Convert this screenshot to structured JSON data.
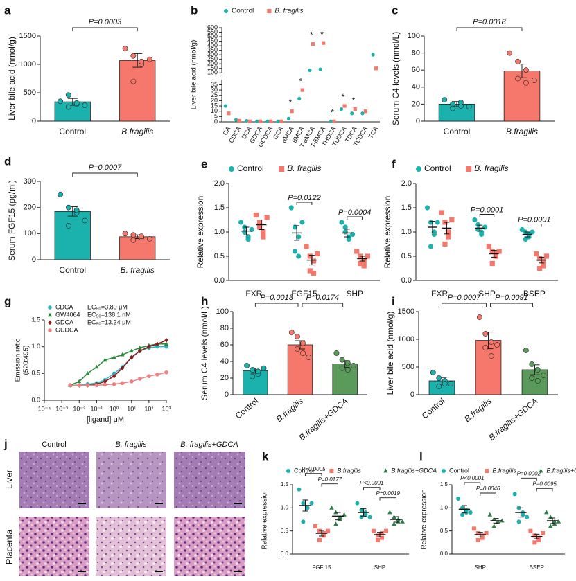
{
  "chart_data": [
    {
      "type": "bar",
      "label": "a",
      "ylabel": "Liver bile acid (nmol/g)",
      "categories": [
        "Control",
        "B.fragilis"
      ],
      "colors": [
        "#1bb1ad",
        "#f6776b"
      ],
      "values": [
        340,
        1070
      ],
      "errors": [
        60,
        120
      ],
      "points": [
        [
          350,
          250,
          300,
          460,
          320,
          280
        ],
        [
          1280,
          1150,
          1000,
          700,
          1050,
          1090
        ]
      ],
      "ylim": [
        0,
        1500
      ],
      "yticks": [
        0,
        500,
        1000,
        1500
      ],
      "comparisons": [
        {
          "groups": [
            0,
            1
          ],
          "label": "P=0.0003"
        }
      ]
    },
    {
      "type": "dot",
      "label": "b",
      "ylabel": "Liver bile acid (nmol/g)",
      "categories": [
        "CA",
        "CDCA",
        "DCA",
        "GDCA",
        "GCDCA",
        "GCA",
        "αMCA",
        "βMCA",
        "T-αMCA",
        "T-βMCA",
        "THDCA",
        "TUDCA",
        "TDCA",
        "TCDCA",
        "TCA"
      ],
      "series": [
        {
          "name": "Control",
          "color": "#1bb1ad",
          "marker": "circle",
          "values": [
            15,
            2,
            1,
            0.5,
            0.5,
            0.5,
            3,
            22,
            130,
            140,
            0.5,
            12,
            8,
            8,
            300
          ]
        },
        {
          "name": "B. fragilis",
          "color": "#f6776b",
          "marker": "square",
          "values": [
            8,
            1,
            0.5,
            0.5,
            0.5,
            0.5,
            10,
            30,
            420,
            430,
            0.5,
            15,
            12,
            10,
            150
          ]
        }
      ],
      "ylim": [
        0,
        600
      ],
      "ybreak": [
        40,
        100
      ],
      "yticks": [
        0,
        5,
        10,
        15,
        20,
        25,
        30,
        35,
        100,
        150,
        200,
        250,
        300,
        350,
        400,
        450,
        500,
        550,
        600
      ],
      "significance": [
        null,
        null,
        null,
        null,
        null,
        null,
        "*",
        "*",
        "*",
        "*",
        "*",
        "*",
        "*",
        null,
        null
      ]
    },
    {
      "type": "bar",
      "label": "c",
      "ylabel": "Serum C4 levels (nmol/L)",
      "categories": [
        "Control",
        "B.fragilis"
      ],
      "colors": [
        "#1bb1ad",
        "#f6776b"
      ],
      "values": [
        20,
        59
      ],
      "errors": [
        3,
        8
      ],
      "points": [
        [
          25,
          20,
          18,
          15,
          22,
          17
        ],
        [
          80,
          70,
          60,
          50,
          45,
          48
        ]
      ],
      "ylim": [
        0,
        100
      ],
      "yticks": [
        0,
        20,
        40,
        60,
        80,
        100
      ],
      "comparisons": [
        {
          "groups": [
            0,
            1
          ],
          "label": "P=0.0018"
        }
      ]
    },
    {
      "type": "bar",
      "label": "d",
      "ylabel": "Serum FGF15 (pg/ml)",
      "categories": [
        "Control",
        "B. fragilis"
      ],
      "colors": [
        "#1bb1ad",
        "#f6776b"
      ],
      "values": [
        185,
        88
      ],
      "errors": [
        18,
        7
      ],
      "points": [
        [
          250,
          200,
          180,
          130,
          190,
          150
        ],
        [
          100,
          95,
          85,
          75,
          90,
          80
        ]
      ],
      "ylim": [
        0,
        300
      ],
      "yticks": [
        0,
        100,
        200,
        300
      ],
      "comparisons": [
        {
          "groups": [
            0,
            1
          ],
          "label": "P=0.0007"
        }
      ]
    },
    {
      "type": "dot",
      "label": "e",
      "ylabel": "Relative expression",
      "categories": [
        "FXR",
        "FGF15",
        "SHP"
      ],
      "series": [
        {
          "name": "Control",
          "color": "#1bb1ad",
          "marker": "circle",
          "values": [
            1.02,
            0.98,
            0.98
          ],
          "errors": [
            0.08,
            0.15,
            0.08
          ],
          "points": [
            [
              1.2,
              1.0,
              0.9,
              1.1,
              0.85,
              1.05
            ],
            [
              1.5,
              1.1,
              0.9,
              0.6,
              0.5,
              1.2
            ],
            [
              1.2,
              1.0,
              0.85,
              1.1,
              0.9,
              0.95
            ]
          ]
        },
        {
          "name": "B. fragilis",
          "color": "#f6776b",
          "marker": "square",
          "values": [
            1.15,
            0.42,
            0.45
          ],
          "errors": [
            0.1,
            0.1,
            0.05
          ],
          "points": [
            [
              1.35,
              1.2,
              0.9,
              1.1,
              1.0,
              1.3
            ],
            [
              0.7,
              0.5,
              0.4,
              0.2,
              0.15,
              0.55
            ],
            [
              0.6,
              0.5,
              0.4,
              0.35,
              0.3,
              0.5
            ]
          ]
        }
      ],
      "ylim": [
        0,
        2
      ],
      "yticks": [
        {
          "value": 0,
          "label": "0.0"
        },
        0.5,
        {
          "value": 1,
          "label": "1.0"
        },
        1.5,
        {
          "value": 2,
          "label": "2.0"
        }
      ],
      "comparisons": [
        {
          "category": 1,
          "groups": [
            0,
            1
          ],
          "label": "P=0.0122"
        },
        {
          "category": 2,
          "groups": [
            0,
            1
          ],
          "label": "P=0.0004"
        }
      ]
    },
    {
      "type": "dot",
      "label": "f",
      "ylabel": "Relative expression",
      "categories": [
        "FXR",
        "SHP",
        "BSEP"
      ],
      "series": [
        {
          "name": "Control",
          "color": "#1bb1ad",
          "marker": "circle",
          "values": [
            1.1,
            1.08,
            0.95
          ],
          "errors": [
            0.12,
            0.06,
            0.05
          ],
          "points": [
            [
              1.5,
              1.2,
              1.0,
              0.7,
              0.95,
              1.2
            ],
            [
              1.25,
              1.15,
              1.0,
              1.05,
              0.95,
              1.1
            ],
            [
              1.05,
              1.0,
              0.9,
              0.85,
              0.95,
              1.0
            ]
          ]
        },
        {
          "name": "B. fragilis",
          "color": "#f6776b",
          "marker": "square",
          "values": [
            1.08,
            0.55,
            0.42
          ],
          "errors": [
            0.12,
            0.07,
            0.06
          ],
          "points": [
            [
              1.4,
              1.2,
              1.0,
              0.75,
              0.9,
              1.25
            ],
            [
              0.7,
              0.6,
              0.5,
              0.35,
              0.55,
              0.6
            ],
            [
              0.55,
              0.45,
              0.4,
              0.25,
              0.3,
              0.5
            ]
          ]
        }
      ],
      "ylim": [
        0,
        2
      ],
      "yticks": [
        {
          "value": 0,
          "label": "0.0"
        },
        0.5,
        {
          "value": 1,
          "label": "1.0"
        },
        1.5,
        {
          "value": 2,
          "label": "2.0"
        }
      ],
      "comparisons": [
        {
          "category": 1,
          "groups": [
            0,
            1
          ],
          "label": "P=0.0001"
        },
        {
          "category": 2,
          "groups": [
            0,
            1
          ],
          "label": "P=0.0001"
        }
      ]
    },
    {
      "type": "line",
      "label": "g",
      "ylabel": [
        "Emission  ratio",
        "(520:495)"
      ],
      "xlabel": "[ligand] μM",
      "x": [
        0.003,
        0.01,
        0.03,
        0.1,
        0.3,
        1,
        3,
        10,
        30,
        100,
        300,
        1000
      ],
      "series": [
        {
          "name": "CDCA",
          "ec50": "EC₅₀=3.80 μM",
          "color": "#2bb5c0",
          "marker": "circle",
          "values": [
            0.28,
            0.28,
            0.3,
            0.32,
            0.38,
            0.5,
            0.62,
            0.8,
            0.92,
            0.98,
            1.0,
            1.0
          ]
        },
        {
          "name": "GW4064",
          "ec50": "EC₅₀=138.1 nM",
          "color": "#2a8a3a",
          "marker": "triangle",
          "values": [
            0.28,
            0.35,
            0.5,
            0.62,
            0.75,
            0.8,
            0.85,
            0.92,
            0.98,
            1.02,
            1.05,
            1.05
          ]
        },
        {
          "name": "GDCA",
          "ec50": "EC₅₀=13.34 μM",
          "color": "#8b1a1a",
          "marker": "diamond",
          "values": [
            0.28,
            0.28,
            0.28,
            0.3,
            0.35,
            0.45,
            0.6,
            0.8,
            0.92,
            1.0,
            1.05,
            1.12
          ]
        },
        {
          "name": "GUDCA",
          "color": "#f08080",
          "marker": "circle",
          "values": [
            0.28,
            0.28,
            0.28,
            0.28,
            0.29,
            0.3,
            0.32,
            0.35,
            0.4,
            0.45,
            0.48,
            0.52
          ]
        }
      ],
      "xlog": true,
      "xlim": [
        0.0001,
        1000
      ],
      "xticks": [
        {
          "value": 0.0001,
          "label": "10⁻⁴"
        },
        {
          "value": 0.001,
          "label": "10⁻³"
        },
        {
          "value": 0.01,
          "label": "10⁻²"
        },
        {
          "value": 0.1,
          "label": "10⁻¹"
        },
        {
          "value": 1,
          "label": "10⁰"
        },
        {
          "value": 10,
          "label": "10¹"
        },
        {
          "value": 100,
          "label": "10²"
        },
        {
          "value": 1000,
          "label": "10³"
        }
      ],
      "ylim": [
        0,
        1.5
      ],
      "yticks": [
        {
          "value": 0,
          "label": "0.0"
        },
        0.5,
        {
          "value": 1,
          "label": "1.0"
        },
        1.5
      ]
    },
    {
      "type": "bar",
      "label": "h",
      "ylabel": "Serum C4 levels (nmol/L)",
      "categories": [
        "Control",
        "B.fragilis",
        "B.fragilis+GDCA"
      ],
      "colors": [
        "#1bb1ad",
        "#f6776b",
        "#5a9a5a"
      ],
      "values": [
        29,
        60,
        37
      ],
      "errors": [
        3,
        5,
        4
      ],
      "points": [
        [
          35,
          30,
          25,
          22,
          28,
          32
        ],
        [
          75,
          70,
          62,
          55,
          50,
          45
        ],
        [
          50,
          42,
          38,
          32,
          30,
          35
        ]
      ],
      "ylim": [
        0,
        100
      ],
      "yticks": [
        0,
        20,
        40,
        60,
        80,
        100
      ],
      "comparisons": [
        {
          "groups": [
            0,
            1
          ],
          "label": "P=0.0013"
        },
        {
          "groups": [
            1,
            2
          ],
          "label": "P=0.0174"
        }
      ]
    },
    {
      "type": "bar",
      "label": "i",
      "ylabel": "Liver bile acid (nmol/g)",
      "categories": [
        "Control",
        "B.fragilis",
        "B.fragilis+GDCA"
      ],
      "colors": [
        "#1bb1ad",
        "#f6776b",
        "#5a9a5a"
      ],
      "values": [
        250,
        980,
        450
      ],
      "errors": [
        60,
        150,
        90
      ],
      "points": [
        [
          400,
          300,
          250,
          150,
          200,
          200
        ],
        [
          1400,
          1100,
          950,
          850,
          700,
          900
        ],
        [
          800,
          550,
          450,
          300,
          250,
          350
        ]
      ],
      "ylim": [
        0,
        1500
      ],
      "yticks": [
        0,
        500,
        1000,
        1500
      ],
      "comparisons": [
        {
          "groups": [
            0,
            1
          ],
          "label": "P=0.0007"
        },
        {
          "groups": [
            1,
            2
          ],
          "label": "P=0.0091"
        }
      ]
    },
    {
      "type": "dot",
      "label": "k",
      "ylabel": "Relative expression",
      "categories": [
        "FGF 15",
        "SHP"
      ],
      "series": [
        {
          "name": "Control",
          "color": "#1bb1ad",
          "marker": "circle",
          "values": [
            1.05,
            0.9
          ],
          "errors": [
            0.12,
            0.08
          ],
          "points": [
            [
              1.4,
              1.1,
              1.0,
              0.7,
              1.0,
              1.1
            ],
            [
              1.1,
              0.95,
              0.85,
              0.8,
              0.9,
              0.8
            ]
          ]
        },
        {
          "name": "B.fragilis",
          "color": "#f6776b",
          "marker": "square",
          "values": [
            0.45,
            0.42
          ],
          "errors": [
            0.06,
            0.05
          ],
          "points": [
            [
              0.6,
              0.5,
              0.4,
              0.3,
              0.45,
              0.5
            ],
            [
              0.5,
              0.4,
              0.35,
              0.3,
              0.45,
              0.5
            ]
          ]
        },
        {
          "name": "B.fragilis+GDCA",
          "color": "#2f7d4a",
          "marker": "triangle",
          "values": [
            0.82,
            0.75
          ],
          "errors": [
            0.08,
            0.06
          ],
          "points": [
            [
              1.0,
              0.9,
              0.8,
              0.65,
              0.75,
              0.85
            ],
            [
              0.9,
              0.8,
              0.7,
              0.65,
              0.75,
              0.7
            ]
          ]
        }
      ],
      "ylim": [
        0,
        1.5
      ],
      "yticks": [
        {
          "value": 0,
          "label": "0.0"
        },
        0.5,
        {
          "value": 1,
          "label": "1.0"
        },
        1.5
      ],
      "comparisons": [
        {
          "category": 0,
          "groups": [
            0,
            1
          ],
          "label": "P=0.0005"
        },
        {
          "category": 0,
          "groups": [
            1,
            2
          ],
          "label": "P=0.0177"
        },
        {
          "category": 1,
          "groups": [
            0,
            1
          ],
          "label": "P<0.0001"
        },
        {
          "category": 1,
          "groups": [
            1,
            2
          ],
          "label": "P=0.0019"
        }
      ]
    },
    {
      "type": "dot",
      "label": "l",
      "ylabel": "Relative expression",
      "categories": [
        "SHP",
        "BSEP"
      ],
      "series": [
        {
          "name": "Control",
          "color": "#1bb1ad",
          "marker": "circle",
          "values": [
            0.97,
            0.9
          ],
          "errors": [
            0.08,
            0.1
          ],
          "points": [
            [
              1.2,
              1.0,
              0.9,
              0.85,
              0.95,
              0.9
            ],
            [
              1.3,
              1.0,
              0.85,
              0.7,
              0.9,
              0.8
            ]
          ]
        },
        {
          "name": "B.fragilis",
          "color": "#f6776b",
          "marker": "square",
          "values": [
            0.42,
            0.38
          ],
          "errors": [
            0.05,
            0.05
          ],
          "points": [
            [
              0.55,
              0.45,
              0.4,
              0.3,
              0.35,
              0.45
            ],
            [
              0.5,
              0.4,
              0.35,
              0.25,
              0.3,
              0.45
            ]
          ]
        },
        {
          "name": "B.fragilis+GDCA",
          "color": "#2f7d4a",
          "marker": "triangle",
          "values": [
            0.72,
            0.72
          ],
          "errors": [
            0.05,
            0.06
          ],
          "points": [
            [
              0.85,
              0.75,
              0.7,
              0.6,
              0.7,
              0.72
            ],
            [
              0.9,
              0.8,
              0.7,
              0.6,
              0.65,
              0.7
            ]
          ]
        }
      ],
      "ylim": [
        0,
        1.5
      ],
      "yticks": [
        {
          "value": 0,
          "label": "0.0"
        },
        0.5,
        {
          "value": 1,
          "label": "1.0"
        },
        1.5
      ],
      "comparisons": [
        {
          "category": 0,
          "groups": [
            0,
            1
          ],
          "label": "P<0.0001"
        },
        {
          "category": 0,
          "groups": [
            1,
            2
          ],
          "label": "P=0.0046"
        },
        {
          "category": 1,
          "groups": [
            0,
            1
          ],
          "label": "P=0.0002"
        },
        {
          "category": 1,
          "groups": [
            1,
            2
          ],
          "label": "P=0.0095"
        }
      ]
    }
  ],
  "histology": {
    "label": "j",
    "columns": [
      "Control",
      "B. fragilis",
      "B. fragilis+GDCA"
    ],
    "rows": [
      "Liver",
      "Placenta"
    ]
  }
}
